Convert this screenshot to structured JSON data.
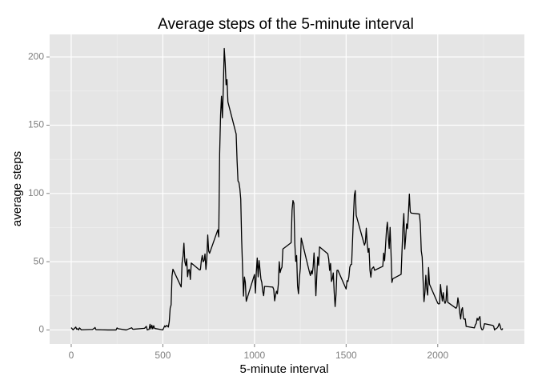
{
  "chart_data": {
    "type": "line",
    "title": "Average steps of the 5-minute interval",
    "xlabel": "5-minute interval",
    "ylabel": "average steps",
    "series": [
      {
        "color": "#000000",
        "x": [
          0,
          10,
          25,
          30,
          35,
          40,
          45,
          55,
          100,
          115,
          125,
          130,
          135,
          200,
          230,
          245,
          250,
          255,
          300,
          330,
          335,
          340,
          400,
          410,
          415,
          420,
          425,
          430,
          435,
          440,
          445,
          450,
          455,
          500,
          505,
          510,
          515,
          520,
          525,
          530,
          535,
          540,
          545,
          550,
          555,
          600,
          605,
          610,
          615,
          620,
          625,
          630,
          635,
          640,
          645,
          650,
          655,
          700,
          705,
          710,
          715,
          720,
          725,
          730,
          735,
          740,
          745,
          750,
          755,
          800,
          805,
          810,
          815,
          820,
          825,
          830,
          835,
          840,
          845,
          850,
          855,
          900,
          905,
          910,
          915,
          920,
          925,
          930,
          935,
          940,
          945,
          950,
          955,
          1000,
          1005,
          1010,
          1015,
          1020,
          1025,
          1030,
          1035,
          1040,
          1045,
          1050,
          1055,
          1100,
          1105,
          1110,
          1115,
          1120,
          1125,
          1130,
          1135,
          1140,
          1145,
          1150,
          1155,
          1200,
          1205,
          1210,
          1215,
          1220,
          1225,
          1230,
          1235,
          1240,
          1245,
          1250,
          1255,
          1300,
          1305,
          1310,
          1315,
          1320,
          1325,
          1330,
          1335,
          1340,
          1345,
          1350,
          1355,
          1400,
          1405,
          1410,
          1415,
          1420,
          1425,
          1430,
          1435,
          1440,
          1445,
          1450,
          1455,
          1500,
          1505,
          1510,
          1515,
          1520,
          1525,
          1530,
          1535,
          1540,
          1545,
          1550,
          1555,
          1600,
          1605,
          1610,
          1615,
          1620,
          1625,
          1630,
          1635,
          1640,
          1645,
          1650,
          1655,
          1700,
          1705,
          1710,
          1715,
          1720,
          1725,
          1730,
          1735,
          1740,
          1745,
          1750,
          1755,
          1800,
          1805,
          1810,
          1815,
          1820,
          1825,
          1830,
          1835,
          1840,
          1845,
          1850,
          1855,
          1900,
          1905,
          1910,
          1915,
          1920,
          1925,
          1930,
          1935,
          1940,
          1945,
          1950,
          1955,
          2000,
          2005,
          2010,
          2015,
          2020,
          2025,
          2030,
          2035,
          2040,
          2045,
          2050,
          2055,
          2100,
          2105,
          2110,
          2115,
          2120,
          2125,
          2130,
          2135,
          2140,
          2145,
          2150,
          2155,
          2200,
          2205,
          2210,
          2215,
          2220,
          2225,
          2230,
          2235,
          2240,
          2245,
          2250,
          2255,
          2300,
          2305,
          2310,
          2315,
          2320,
          2325,
          2330,
          2335,
          2340,
          2345,
          2350,
          2355
        ],
        "values": [
          1.7,
          0.1,
          2.1,
          0.5,
          0.9,
          0,
          1.5,
          0.1,
          0.3,
          0.3,
          1.1,
          1.8,
          0.2,
          0,
          0,
          0,
          1.5,
          0.9,
          0,
          1.6,
          0.6,
          0.5,
          1.2,
          2.6,
          0,
          0.3,
          0.4,
          4.1,
          0.7,
          3.5,
          0.8,
          3.1,
          1.1,
          0,
          1.5,
          3.0,
          2.2,
          3.3,
          3.0,
          2.1,
          6.1,
          16,
          18.3,
          39.5,
          44.5,
          31.5,
          49.3,
          53.8,
          63.5,
          50,
          47,
          52,
          39,
          44,
          44.2,
          37,
          49,
          44,
          44.2,
          50.8,
          54.5,
          49.9,
          50.9,
          55.7,
          44.3,
          52.3,
          69.5,
          57.8,
          56.2,
          73.4,
          68.2,
          129.4,
          157.5,
          171.2,
          155.4,
          177.3,
          206.2,
          195.9,
          179.6,
          183.4,
          167,
          143.5,
          124,
          109.1,
          108.1,
          103.7,
          95.9,
          66.2,
          45.2,
          24.8,
          38.8,
          35,
          21,
          40.6,
          27,
          42.4,
          52.7,
          38.9,
          50.8,
          44.3,
          37.4,
          34.7,
          28.3,
          25.1,
          31.9,
          31.4,
          29.7,
          21.3,
          25.5,
          28.4,
          26.5,
          33.4,
          50,
          42,
          44.6,
          46,
          59.3,
          63.9,
          87.7,
          94.8,
          92.8,
          63.4,
          50.2,
          54.5,
          32.4,
          26.5,
          37.7,
          45.1,
          67.3,
          42.3,
          39.9,
          43.3,
          40.98,
          46.2,
          56.4,
          42.8,
          25.1,
          39.9,
          53.5,
          47.3,
          60.8,
          55.8,
          51.96,
          43.6,
          48.7,
          35.5,
          37.5,
          41.8,
          27.5,
          17.1,
          26.1,
          43.6,
          43.8,
          30,
          36.1,
          35.5,
          38.8,
          45.96,
          47.8,
          48.1,
          65.3,
          82.9,
          98.7,
          102.1,
          84,
          62.1,
          64.1,
          74.5,
          63.2,
          56.9,
          59.8,
          43.9,
          38.6,
          44.7,
          45.5,
          46.2,
          43.7,
          46.6,
          56.3,
          50.7,
          61.2,
          72.7,
          78.9,
          68.9,
          59.7,
          75.1,
          56.5,
          34.8,
          37.5,
          40.7,
          58,
          74.7,
          85.3,
          59.3,
          67.8,
          77.7,
          74.2,
          85.3,
          99.5,
          86.6,
          85.6,
          84.9,
          77.8,
          58,
          53.4,
          36.3,
          20.7,
          27.4,
          40,
          30.2,
          25.5,
          45.7,
          33.5,
          19.6,
          19,
          19.3,
          33.3,
          26.8,
          21.2,
          27.3,
          21.3,
          19.5,
          21.3,
          32.3,
          20.2,
          15.9,
          17.2,
          23.5,
          19.2,
          12.5,
          8.0,
          14.7,
          16.3,
          8.7,
          7.8,
          8.1,
          2.6,
          1.5,
          3.7,
          4.8,
          8.5,
          7.1,
          8.7,
          9.8,
          2.2,
          0.3,
          0.1,
          1.6,
          4.6,
          3.3,
          2.8,
          0,
          0.8,
          1,
          1.6,
          2.6,
          4.7,
          3.3,
          0.6,
          0.2,
          1.1
        ]
      }
    ],
    "xlim": [
      -117.75,
      2472.75
    ],
    "ylim": [
      -10.3,
      216.5
    ],
    "xticks": [
      0,
      500,
      1000,
      1500,
      2000
    ],
    "yticks": [
      0,
      50,
      100,
      150,
      200
    ],
    "xminor_ticks": [
      250,
      750,
      1250,
      1750,
      2250
    ],
    "yminor_ticks": [
      25,
      75,
      125,
      175
    ],
    "grid": true
  }
}
